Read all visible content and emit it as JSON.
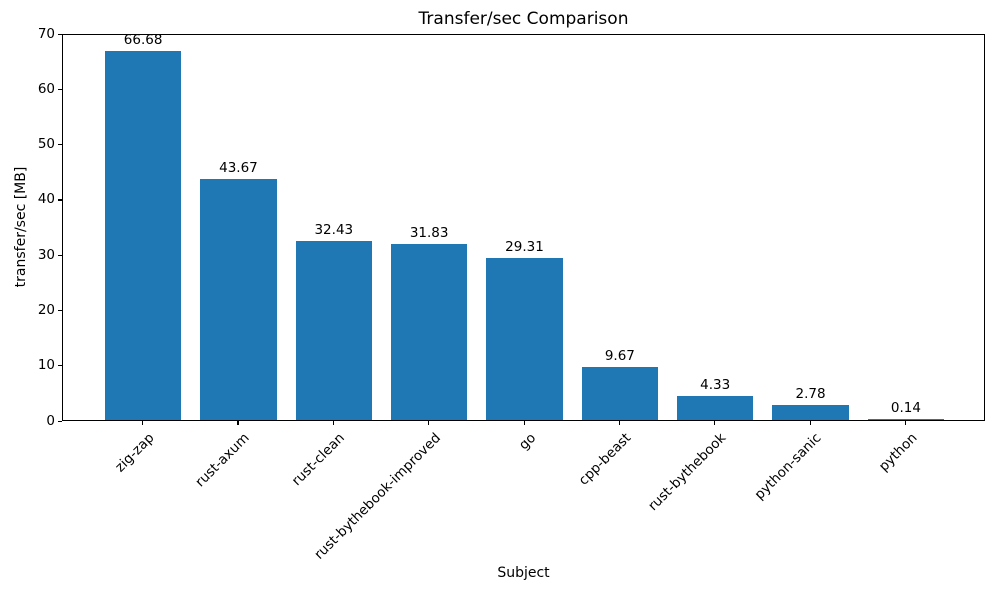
{
  "chart_data": {
    "type": "bar",
    "title": "Transfer/sec Comparison",
    "xlabel": "Subject",
    "ylabel": "transfer/sec [MB]",
    "categories": [
      "zig-zap",
      "rust-axum",
      "rust-clean",
      "rust-bythebook-improved",
      "go",
      "cpp-beast",
      "rust-bythebook",
      "python-sanic",
      "python"
    ],
    "values": [
      66.68,
      43.67,
      32.43,
      31.83,
      29.31,
      9.67,
      4.33,
      2.78,
      0.14
    ],
    "bar_labels": [
      "66.68",
      "43.67",
      "32.43",
      "31.83",
      "29.31",
      "9.67",
      "4.33",
      "2.78",
      "0.14"
    ],
    "ylim": [
      0,
      70
    ],
    "yticks": [
      0,
      10,
      20,
      30,
      40,
      50,
      60,
      70
    ],
    "bar_color": "#1f77b4",
    "spine_color": "#000000",
    "grid": false,
    "legend": null,
    "x_tick_rotation_deg": 45,
    "bar_width_fraction": 0.8
  }
}
